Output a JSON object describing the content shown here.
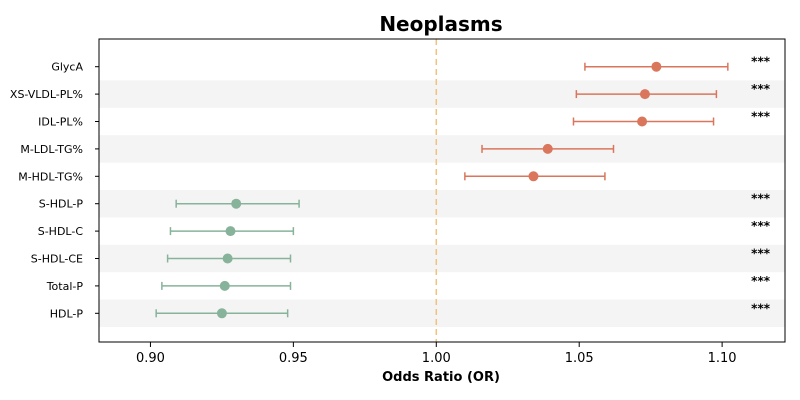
{
  "chart_data": {
    "type": "forest",
    "title": "Neoplasms",
    "xlabel": "Odds Ratio (OR)",
    "xlim": [
      0.882,
      1.122
    ],
    "xticks": [
      "0.90",
      "0.95",
      "1.00",
      "1.05",
      "1.10"
    ],
    "xtick_values": [
      0.9,
      0.95,
      1.0,
      1.05,
      1.1
    ],
    "reference_line": 1.0,
    "colors": {
      "positive": "#d9765c",
      "negative": "#87b39b",
      "reference": "#f2c27a",
      "band": "#f4f4f4"
    },
    "rows": [
      {
        "label": "GlycA",
        "or": 1.077,
        "lo": 1.052,
        "hi": 1.102,
        "sig": "***"
      },
      {
        "label": "XS-VLDL-PL%",
        "or": 1.073,
        "lo": 1.049,
        "hi": 1.098,
        "sig": "***"
      },
      {
        "label": "IDL-PL%",
        "or": 1.072,
        "lo": 1.048,
        "hi": 1.097,
        "sig": "***"
      },
      {
        "label": "M-LDL-TG%",
        "or": 1.039,
        "lo": 1.016,
        "hi": 1.062,
        "sig": ""
      },
      {
        "label": "M-HDL-TG%",
        "or": 1.034,
        "lo": 1.01,
        "hi": 1.059,
        "sig": ""
      },
      {
        "label": "S-HDL-P",
        "or": 0.93,
        "lo": 0.909,
        "hi": 0.952,
        "sig": "***"
      },
      {
        "label": "S-HDL-C",
        "or": 0.928,
        "lo": 0.907,
        "hi": 0.95,
        "sig": "***"
      },
      {
        "label": "S-HDL-CE",
        "or": 0.927,
        "lo": 0.906,
        "hi": 0.949,
        "sig": "***"
      },
      {
        "label": "Total-P",
        "or": 0.926,
        "lo": 0.904,
        "hi": 0.949,
        "sig": "***"
      },
      {
        "label": "HDL-P",
        "or": 0.925,
        "lo": 0.902,
        "hi": 0.948,
        "sig": "***"
      }
    ]
  }
}
